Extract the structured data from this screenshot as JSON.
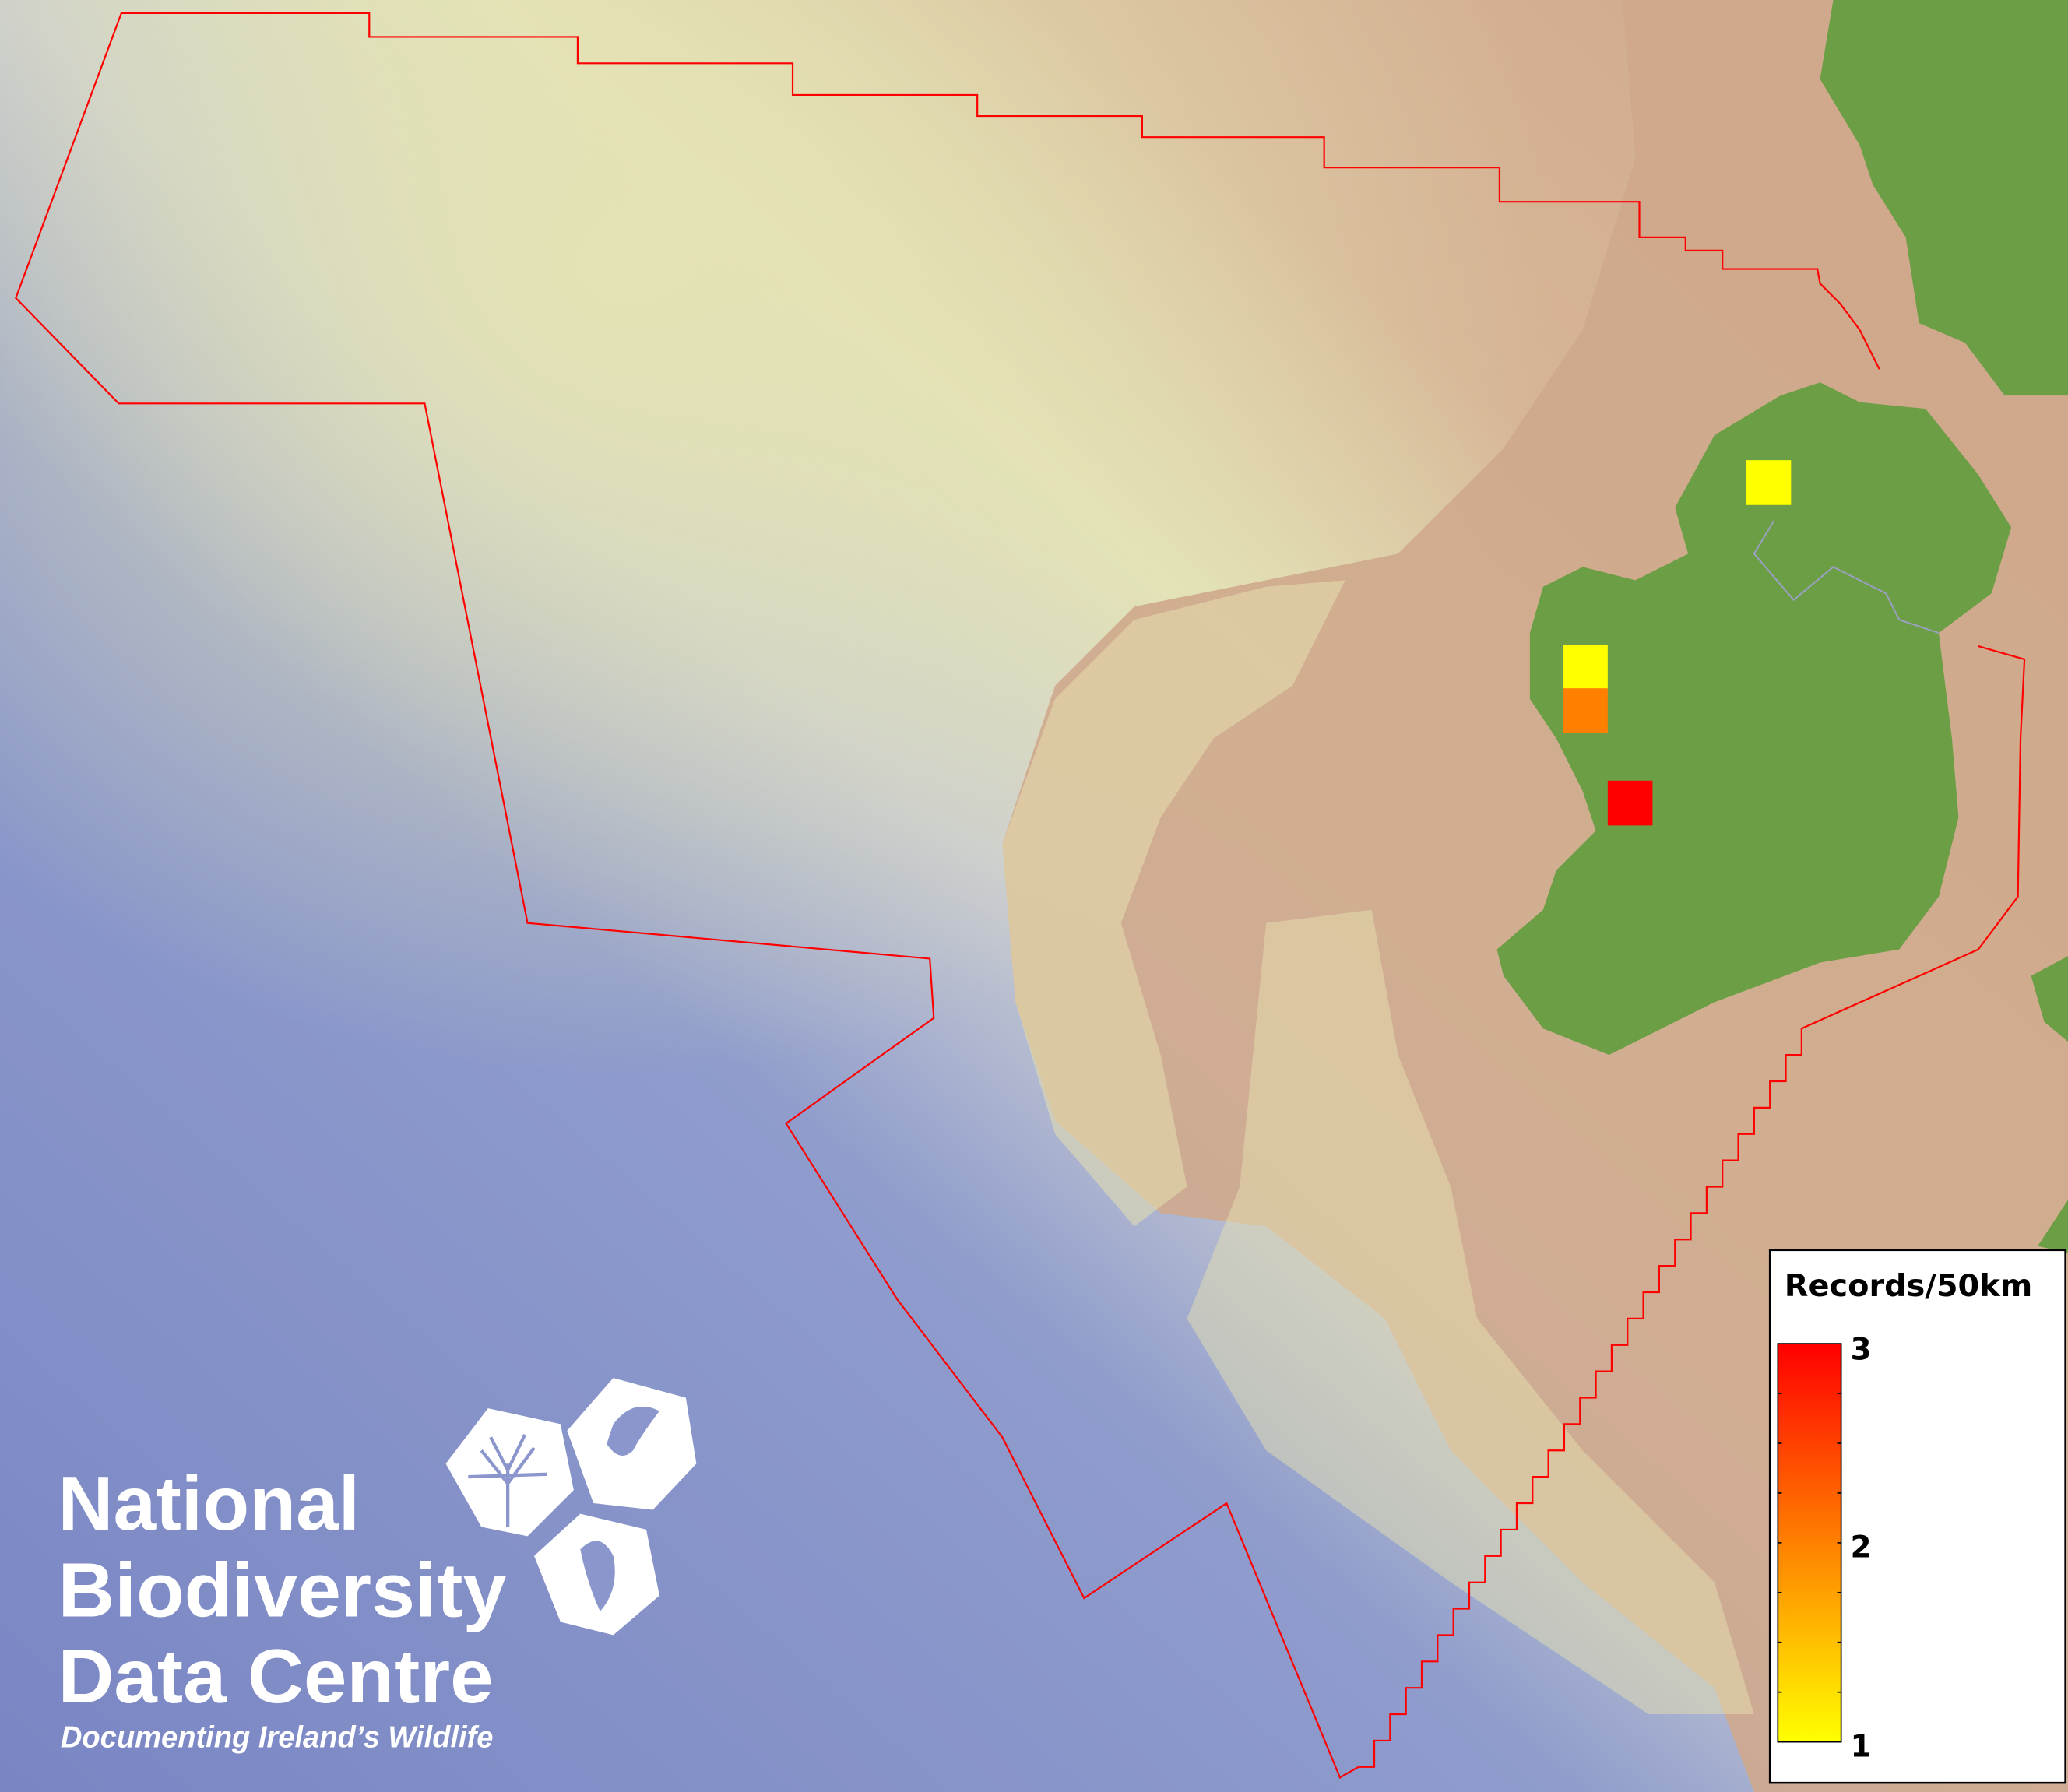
{
  "map": {
    "colors": {
      "deep_sea": "#7d8ac6",
      "shelf": "#e2e2b8",
      "land_background": "#cfa98c",
      "land": "#6c9e45",
      "boundary": "#ff0000"
    },
    "grid_cells": [
      {
        "records": 1,
        "color": "#ffff00"
      },
      {
        "records": 1,
        "color": "#ffff00"
      },
      {
        "records": 2,
        "color": "#ff8000"
      },
      {
        "records": 3,
        "color": "#ff0000"
      }
    ]
  },
  "legend": {
    "title": "Records/50km",
    "min_label": "1",
    "mid_label": "2",
    "max_label": "3",
    "min_color": "#ffff00",
    "mid_color": "#ff8000",
    "max_color": "#ff0000"
  },
  "logo": {
    "line1": "National",
    "line2": "Biodiversity",
    "line3": "Data Centre",
    "tagline": "Documenting Ireland’s Wildlife",
    "icons": [
      "tree-icon",
      "butterfly-icon",
      "seahorse-icon"
    ]
  }
}
